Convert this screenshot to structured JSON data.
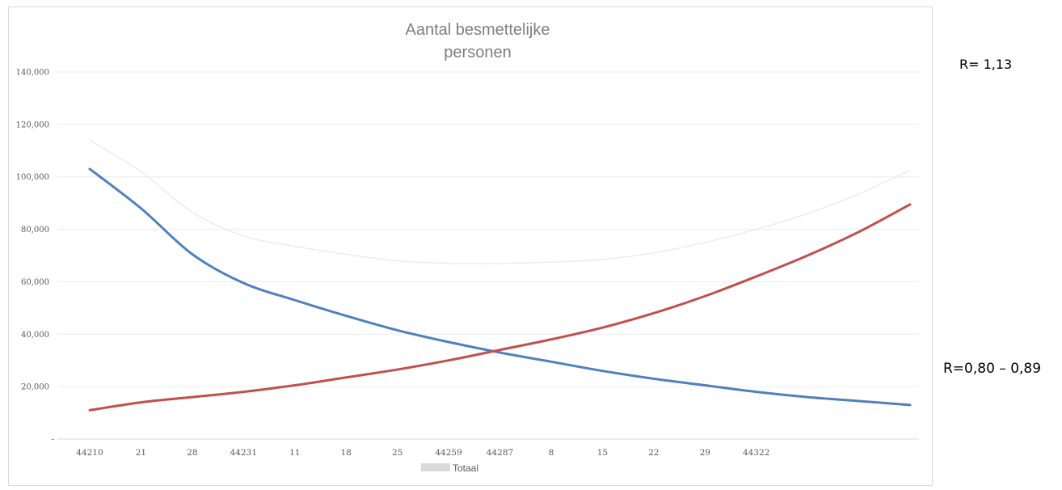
{
  "chart_data": {
    "type": "line",
    "title": [
      "Aantal  besmettelijke",
      "personen"
    ],
    "xlabel": "",
    "ylabel": "",
    "ylim": [
      0,
      140000
    ],
    "yticks": [
      {
        "value": 0,
        "label": "-"
      },
      {
        "value": 20000,
        "label": "20,000"
      },
      {
        "value": 40000,
        "label": "40,000"
      },
      {
        "value": 60000,
        "label": "60,000"
      },
      {
        "value": 80000,
        "label": "80,000"
      },
      {
        "value": 100000,
        "label": "100,000"
      },
      {
        "value": 120000,
        "label": "120,000"
      },
      {
        "value": 140000,
        "label": "140,000"
      }
    ],
    "categories": [
      "44210",
      "21",
      "28",
      "44231",
      "11",
      "18",
      "25",
      "44259",
      "44287",
      "8",
      "15",
      "22",
      "29",
      "44322",
      "",
      "",
      ""
    ],
    "grid": true,
    "legend": {
      "position": "bottom",
      "entries": [
        "Totaal"
      ]
    },
    "series": [
      {
        "name": "",
        "color": "#4f81bd",
        "values": [
          103000,
          88000,
          70500,
          59500,
          53000,
          47000,
          41500,
          37000,
          33000,
          29500,
          26000,
          23000,
          20500,
          18000,
          16000,
          14500,
          13000
        ]
      },
      {
        "name": "",
        "color": "#c0504d",
        "values": [
          11000,
          14000,
          16000,
          18000,
          20500,
          23500,
          26500,
          30000,
          34000,
          38000,
          42500,
          48000,
          54500,
          62000,
          70000,
          79000,
          89500
        ]
      },
      {
        "name": "Totaal",
        "color": "#ececec",
        "values": [
          114000,
          102000,
          86500,
          77500,
          73500,
          70500,
          68000,
          67000,
          67000,
          67500,
          68500,
          71000,
          75000,
          80000,
          86000,
          93500,
          102500
        ]
      }
    ]
  },
  "annotations": {
    "top": "R= 1,13",
    "bottom": "R=0,80 – 0,89"
  }
}
